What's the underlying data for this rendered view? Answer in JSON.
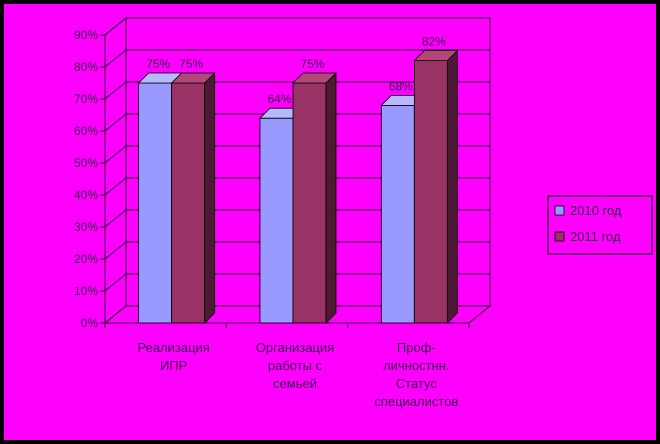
{
  "chart_data": {
    "type": "bar",
    "categories": [
      [
        "Реализация",
        "ИПР"
      ],
      [
        "Организация",
        "работы с",
        "семьей"
      ],
      [
        "Проф-",
        "личностнн.",
        "Статус",
        "специалистов"
      ]
    ],
    "series": [
      {
        "name": "2010 год",
        "values": [
          75,
          64,
          68
        ],
        "labels": [
          "75%",
          "64%",
          "68%"
        ],
        "color": "#9999ff",
        "side": "#7a7acc",
        "topc": "#b8b8ff"
      },
      {
        "name": "2011 год",
        "values": [
          75,
          75,
          82
        ],
        "labels": [
          "75%",
          "75%",
          "82%"
        ],
        "color": "#993366",
        "side": "#4d1a33",
        "topc": "#b3477a"
      }
    ],
    "yticks": [
      "0%",
      "10%",
      "20%",
      "30%",
      "40%",
      "50%",
      "60%",
      "70%",
      "80%",
      "90%"
    ],
    "ylim": [
      0,
      90
    ],
    "legend_position": "right",
    "grid": true
  }
}
